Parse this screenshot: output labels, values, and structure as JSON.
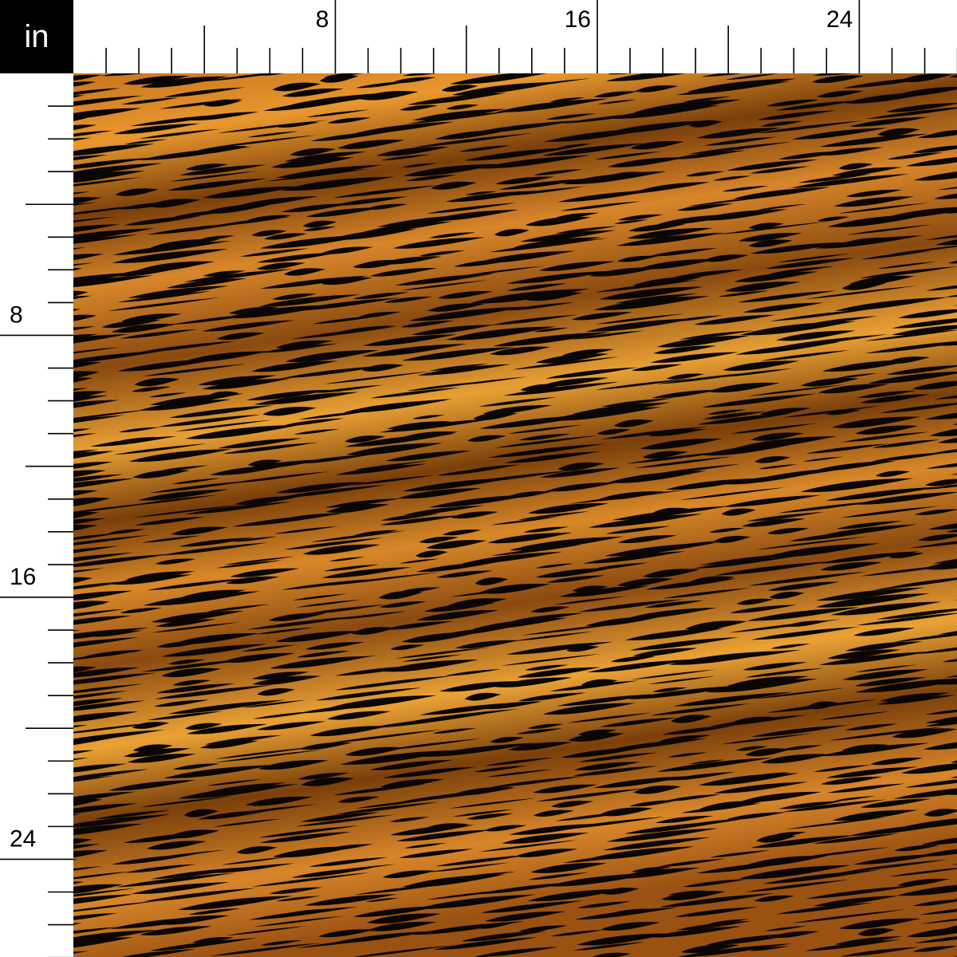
{
  "ruler": {
    "unit_label": "in",
    "top_labels": [
      "8",
      "16",
      "24"
    ],
    "left_labels": [
      "8",
      "16",
      "24"
    ],
    "label_step_inches": 8,
    "major_step_inches": 4,
    "minor_step_inches": 1
  },
  "swatch": {
    "pattern": "tiger stripes",
    "colors": {
      "base": "#c8741c",
      "highlight": "#f0a93c",
      "shadow": "#6a3608",
      "stripe": "#0a0604"
    }
  }
}
